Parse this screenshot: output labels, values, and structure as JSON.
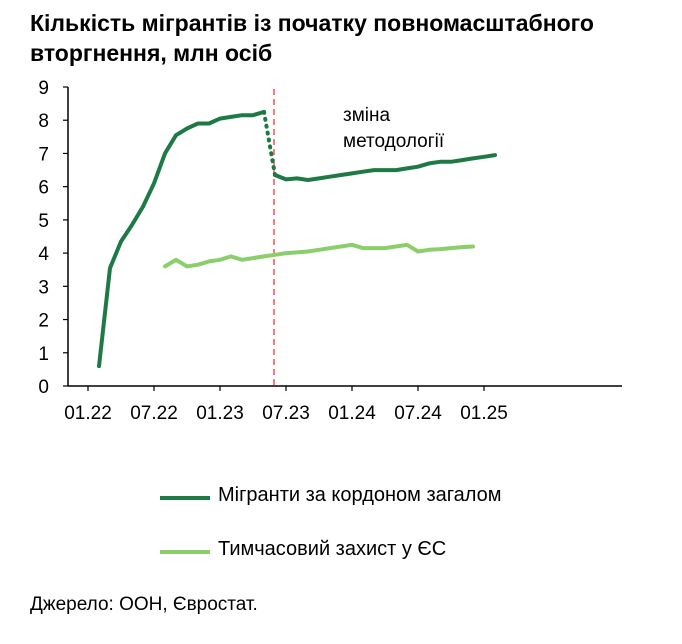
{
  "chart_data": {
    "type": "line",
    "title": "Кількість мігрантів із початку повномасштабного вторгнення, млн осіб",
    "title_lines": [
      "Кількість мігрантів із початку повномасштабного",
      "вторгнення, млн осіб"
    ],
    "xlabel": "",
    "ylabel": "",
    "x_tick_labels": [
      "01.22",
      "07.22",
      "01.23",
      "07.23",
      "01.24",
      "07.24",
      "01.25"
    ],
    "y_ticks": [
      0,
      1,
      2,
      3,
      4,
      5,
      6,
      7,
      8,
      9
    ],
    "ylim": [
      0,
      9
    ],
    "grid": false,
    "legend_position": "bottom",
    "annotation": {
      "lines": [
        "зміна",
        "методології"
      ],
      "x": "2023-06",
      "style": "vertical dashed red line"
    },
    "series": [
      {
        "name": "Мігранти за кордоном загалом",
        "color": "#1e7a45",
        "points": [
          [
            "2022-02",
            0.6
          ],
          [
            "2022-03",
            3.55
          ],
          [
            "2022-04",
            4.35
          ],
          [
            "2022-05",
            4.85
          ],
          [
            "2022-06",
            5.4
          ],
          [
            "2022-07",
            6.1
          ],
          [
            "2022-08",
            7.0
          ],
          [
            "2022-09",
            7.55
          ],
          [
            "2022-10",
            7.75
          ],
          [
            "2022-11",
            7.9
          ],
          [
            "2022-12",
            7.9
          ],
          [
            "2023-01",
            8.05
          ],
          [
            "2023-02",
            8.1
          ],
          [
            "2023-03",
            8.15
          ],
          [
            "2023-04",
            8.15
          ],
          [
            "2023-05",
            8.25
          ]
        ],
        "transition_points": [
          [
            "2023-05",
            8.25
          ],
          [
            "2023-06",
            6.35
          ]
        ],
        "points_after": [
          [
            "2023-06",
            6.35
          ],
          [
            "2023-07",
            6.22
          ],
          [
            "2023-08",
            6.25
          ],
          [
            "2023-09",
            6.2
          ],
          [
            "2023-10",
            6.25
          ],
          [
            "2023-11",
            6.3
          ],
          [
            "2023-12",
            6.35
          ],
          [
            "2024-01",
            6.4
          ],
          [
            "2024-02",
            6.45
          ],
          [
            "2024-03",
            6.5
          ],
          [
            "2024-04",
            6.5
          ],
          [
            "2024-05",
            6.5
          ],
          [
            "2024-06",
            6.55
          ],
          [
            "2024-07",
            6.6
          ],
          [
            "2024-08",
            6.7
          ],
          [
            "2024-09",
            6.75
          ],
          [
            "2024-10",
            6.75
          ],
          [
            "2024-11",
            6.8
          ],
          [
            "2024-12",
            6.85
          ],
          [
            "2025-01",
            6.9
          ],
          [
            "2025-02",
            6.95
          ]
        ]
      },
      {
        "name": "Тимчасовий захист у ЄС",
        "color": "#8bcf6b",
        "points": [
          [
            "2022-08",
            3.6
          ],
          [
            "2022-09",
            3.8
          ],
          [
            "2022-10",
            3.6
          ],
          [
            "2022-11",
            3.65
          ],
          [
            "2022-12",
            3.75
          ],
          [
            "2023-01",
            3.8
          ],
          [
            "2023-02",
            3.9
          ],
          [
            "2023-03",
            3.8
          ],
          [
            "2023-04",
            3.85
          ],
          [
            "2023-05",
            3.9
          ],
          [
            "2023-06",
            3.95
          ],
          [
            "2023-07",
            4.0
          ],
          [
            "2023-08",
            4.02
          ],
          [
            "2023-09",
            4.05
          ],
          [
            "2023-10",
            4.1
          ],
          [
            "2023-11",
            4.15
          ],
          [
            "2023-12",
            4.2
          ],
          [
            "2024-01",
            4.25
          ],
          [
            "2024-02",
            4.15
          ],
          [
            "2024-03",
            4.15
          ],
          [
            "2024-04",
            4.15
          ],
          [
            "2024-05",
            4.2
          ],
          [
            "2024-06",
            4.25
          ],
          [
            "2024-07",
            4.05
          ],
          [
            "2024-08",
            4.1
          ],
          [
            "2024-09",
            4.12
          ],
          [
            "2024-10",
            4.15
          ],
          [
            "2024-11",
            4.18
          ],
          [
            "2024-12",
            4.2
          ]
        ]
      }
    ]
  },
  "source": "Джерело: ООН, Євростат."
}
